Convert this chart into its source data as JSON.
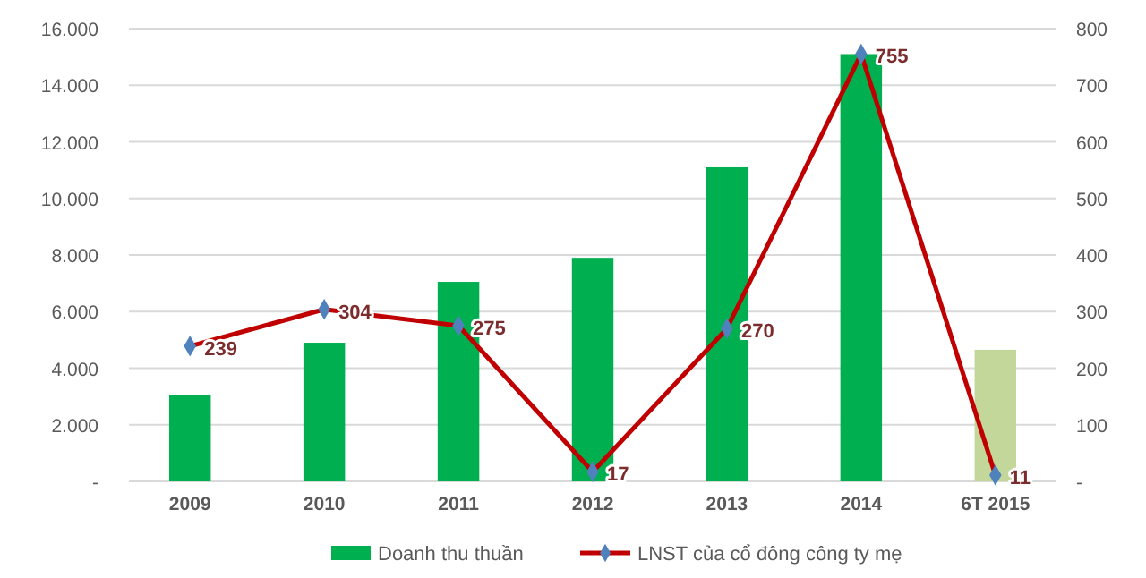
{
  "chart_data": {
    "type": "bar",
    "categories": [
      "2009",
      "2010",
      "2011",
      "2012",
      "2013",
      "2014",
      "6T 2015"
    ],
    "series": [
      {
        "name": "Doanh thu thuần",
        "color": "#00b050",
        "colors": [
          "#00b050",
          "#00b050",
          "#00b050",
          "#00b050",
          "#00b050",
          "#00b050",
          "#c4d79b"
        ],
        "values": [
          3050,
          4900,
          7050,
          7900,
          11100,
          15100,
          4650
        ]
      },
      {
        "name": "LNST của cổ đông công ty mẹ",
        "type": "line",
        "axis": "y2",
        "color": "#c00000",
        "marker": "diamond",
        "values": [
          239,
          304,
          275,
          17,
          270,
          755,
          11
        ],
        "value_labels": [
          "239",
          "304",
          "275",
          "17",
          "270",
          "755",
          "11"
        ]
      }
    ],
    "ylim": [
      0,
      16000
    ],
    "yticks": [
      {
        "value": 0,
        "label": "-"
      },
      {
        "value": 2000,
        "label": "2.000"
      },
      {
        "value": 4000,
        "label": "4.000"
      },
      {
        "value": 6000,
        "label": "6.000"
      },
      {
        "value": 8000,
        "label": "8.000"
      },
      {
        "value": 10000,
        "label": "10.000"
      },
      {
        "value": 12000,
        "label": "12.000"
      },
      {
        "value": 14000,
        "label": "14.000"
      },
      {
        "value": 16000,
        "label": "16.000"
      }
    ],
    "y2lim": [
      0,
      800
    ],
    "y2ticks": [
      {
        "value": 0,
        "label": "-"
      },
      100,
      200,
      300,
      400,
      500,
      600,
      700,
      800
    ],
    "grid": "y",
    "legend": "bottom"
  }
}
